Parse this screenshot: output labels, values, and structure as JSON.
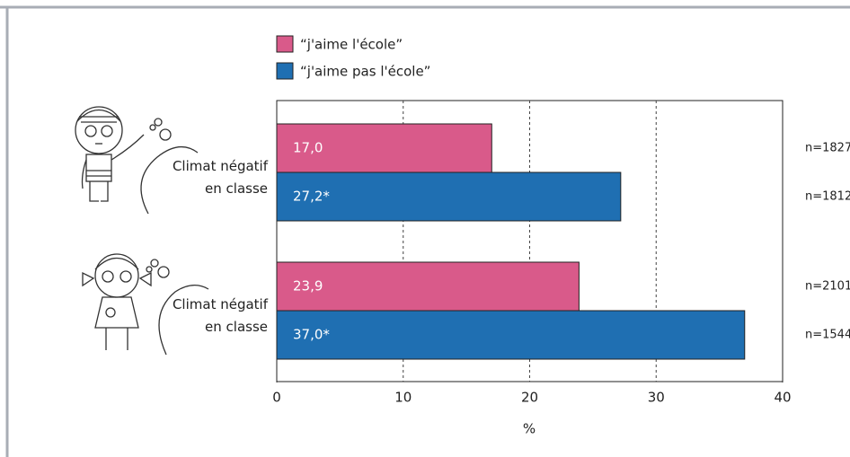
{
  "chart_data": {
    "type": "hbar",
    "categories": [
      [
        "Climat négatif",
        "en classe"
      ],
      [
        "Climat négatif",
        "en classe"
      ]
    ],
    "series": [
      {
        "name": "“j'aime l'école”",
        "color": "#d95a8a",
        "values": [
          17.0,
          23.9
        ],
        "value_labels": [
          "17,0",
          "23,9"
        ],
        "n_labels": [
          "n=1827",
          "n=2101"
        ]
      },
      {
        "name": "“j'aime pas l'école”",
        "color": "#1f6fb2",
        "values": [
          27.2,
          37.0
        ],
        "value_labels": [
          "27,2*",
          "37,0*"
        ],
        "n_labels": [
          "n=1812",
          "n=1544"
        ]
      }
    ],
    "xlim": [
      0,
      40
    ],
    "xticks": [
      0,
      10,
      20,
      30,
      40
    ],
    "xlabel": "%",
    "grid": true
  }
}
